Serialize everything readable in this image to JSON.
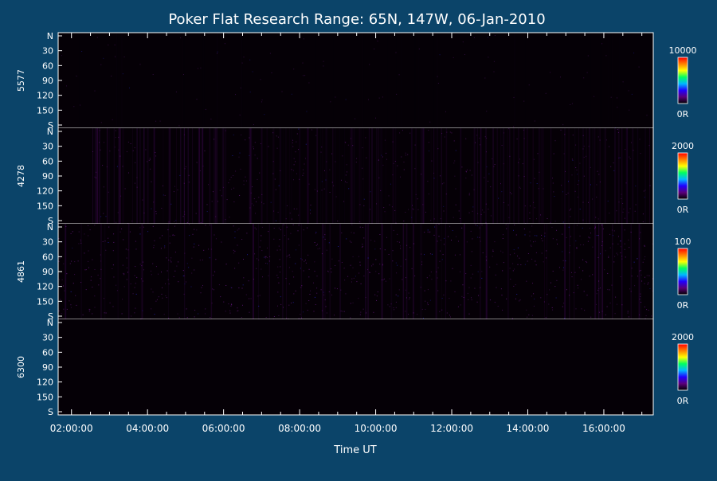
{
  "chart_data": {
    "type": "heatmap",
    "title": "Poker Flat Research Range: 65N, 147W, 06-Jan-2010",
    "xlabel": "Time UT",
    "x_tick_labels": [
      "02:00:00",
      "04:00:00",
      "06:00:00",
      "08:00:00",
      "10:00:00",
      "12:00:00",
      "14:00:00",
      "16:00:00"
    ],
    "x_hours": [
      2,
      4,
      6,
      8,
      10,
      12,
      14,
      16
    ],
    "xlim_hours": [
      1.65,
      17.3
    ],
    "y_tick_labels": [
      "N",
      "30",
      "60",
      "90",
      "120",
      "150",
      "S"
    ],
    "y_values": [
      0,
      30,
      60,
      90,
      120,
      150,
      180
    ],
    "panels": [
      {
        "label": "5577",
        "colorbar_max": "10000",
        "colorbar_min": "0R",
        "relative_intensity": 0.06
      },
      {
        "label": "4278",
        "colorbar_max": "2000",
        "colorbar_min": "0R",
        "relative_intensity": 0.35
      },
      {
        "label": "4861",
        "colorbar_max": "100",
        "colorbar_min": "0R",
        "relative_intensity": 0.55
      },
      {
        "label": "6300",
        "colorbar_max": "2000",
        "colorbar_min": "0R",
        "relative_intensity": 0.0
      }
    ],
    "colormap": [
      "#000000",
      "#5a007a",
      "#2000ff",
      "#00b8ff",
      "#00ff60",
      "#ffff00",
      "#ff8000",
      "#ff0000"
    ]
  }
}
